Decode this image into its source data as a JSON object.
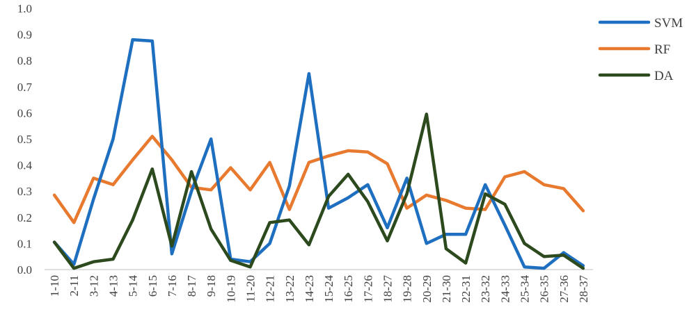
{
  "chart_data": {
    "type": "line",
    "title": "",
    "xlabel": "",
    "ylabel": "",
    "ylim": [
      0,
      1.0
    ],
    "yticks": [
      "0.0",
      "0.1",
      "0.2",
      "0.3",
      "0.4",
      "0.5",
      "0.6",
      "0.7",
      "0.8",
      "0.9",
      "1.0"
    ],
    "grid": false,
    "legend_position": "right",
    "categories": [
      "1-10",
      "2-11",
      "3-12",
      "4-13",
      "5-14",
      "6-15",
      "7-16",
      "8-17",
      "9-18",
      "10-19",
      "11-20",
      "12-21",
      "13-22",
      "14-23",
      "15-24",
      "16-25",
      "17-26",
      "18-27",
      "19-28",
      "20-29",
      "21-30",
      "22-31",
      "23-32",
      "24-33",
      "25-34",
      "26-35",
      "27-36",
      "28-37"
    ],
    "series": [
      {
        "name": "SVM",
        "color": "#1F6FC0",
        "values": [
          0.105,
          0.02,
          0.27,
          0.5,
          0.88,
          0.875,
          0.06,
          0.3,
          0.5,
          0.04,
          0.03,
          0.1,
          0.32,
          0.75,
          0.235,
          0.275,
          0.325,
          0.16,
          0.35,
          0.1,
          0.135,
          0.135,
          0.325,
          0.17,
          0.01,
          0.005,
          0.065,
          0.015
        ]
      },
      {
        "name": "RF",
        "color": "#E87A30",
        "values": [
          0.285,
          0.18,
          0.35,
          0.325,
          0.42,
          0.51,
          0.42,
          0.315,
          0.305,
          0.39,
          0.305,
          0.41,
          0.23,
          0.41,
          0.435,
          0.455,
          0.45,
          0.405,
          0.235,
          0.285,
          0.265,
          0.235,
          0.23,
          0.355,
          0.375,
          0.325,
          0.31,
          0.225
        ]
      },
      {
        "name": "DA",
        "color": "#2C4A1E",
        "values": [
          0.105,
          0.005,
          0.03,
          0.04,
          0.19,
          0.385,
          0.09,
          0.375,
          0.155,
          0.035,
          0.01,
          0.18,
          0.19,
          0.095,
          0.28,
          0.365,
          0.26,
          0.11,
          0.29,
          0.595,
          0.08,
          0.025,
          0.29,
          0.25,
          0.1,
          0.05,
          0.055,
          0.005
        ]
      }
    ]
  }
}
